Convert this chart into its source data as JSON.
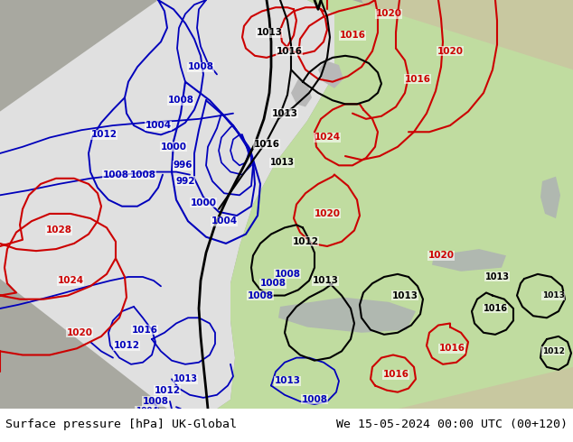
{
  "title_left": "Surface pressure [hPa] UK-Global",
  "title_right": "We 15-05-2024 00:00 UTC (00+120)",
  "caption_fontsize": 9.5,
  "fig_width": 6.34,
  "fig_height": 4.9,
  "dpi": 100,
  "land_color": "#c8c8a0",
  "sea_color": "#a0a8a0",
  "domain_white": "#e8e8e8",
  "domain_green": "#c0dca0",
  "caption_bg": "#e8e8e8",
  "blue": "#0000bb",
  "black": "#000000",
  "red": "#cc0000"
}
